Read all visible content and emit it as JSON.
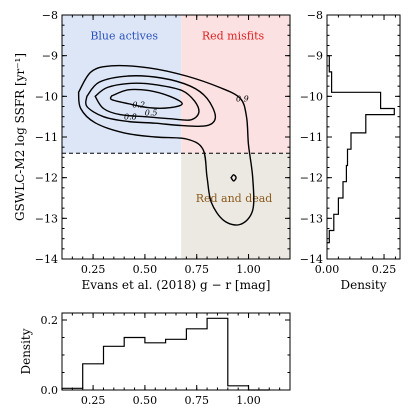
{
  "chart_data": [
    {
      "type": "contour",
      "xlabel": "Evans et al. (2018) g − r [mag]",
      "ylabel": "GSWLC-M2 log SSFR [yr⁻¹]",
      "xlim": [
        0.1,
        1.2
      ],
      "ylim": [
        -14,
        -8
      ],
      "xticks": [
        0.25,
        0.5,
        0.75,
        1.0
      ],
      "xtick_labels": [
        "0.25",
        "0.50",
        "0.75",
        "1.00"
      ],
      "yticks": [
        -14,
        -13,
        -12,
        -11,
        -10,
        -9,
        -8
      ],
      "ytick_labels": [
        "−14",
        "−13",
        "−12",
        "−11",
        "−10",
        "−9",
        "−8"
      ],
      "divider_x": 0.675,
      "divider_y": -11.4,
      "regions": [
        {
          "label": "Blue actives",
          "x_range": [
            0.1,
            0.675
          ],
          "y_range": [
            -11.4,
            -8
          ],
          "color": "#dde6f7",
          "text_color": "#2a52be",
          "label_x": 0.4,
          "label_y": -8.6
        },
        {
          "label": "Red misfits",
          "x_range": [
            0.675,
            1.2
          ],
          "y_range": [
            -11.4,
            -8
          ],
          "color": "#fbe1e1",
          "text_color": "#e02020",
          "label_x": 0.925,
          "label_y": -8.6
        },
        {
          "label": "Red and dead",
          "x_range": [
            0.675,
            1.2
          ],
          "y_range": [
            -14,
            -11.4
          ],
          "color": "#ece9e2",
          "text_color": "#8a5a1a",
          "label_x": 0.93,
          "label_y": -12.6
        }
      ],
      "contours": [
        {
          "level": "0.2",
          "label_x": 0.5,
          "label_y": -10.2,
          "points": [
            [
              0.34,
              -9.99
            ],
            [
              0.42,
              -9.84
            ],
            [
              0.52,
              -9.86
            ],
            [
              0.62,
              -10.0
            ],
            [
              0.68,
              -10.18
            ],
            [
              0.62,
              -10.28
            ],
            [
              0.52,
              -10.28
            ],
            [
              0.42,
              -10.18
            ],
            [
              0.34,
              -10.08
            ],
            [
              0.34,
              -9.99
            ]
          ]
        },
        {
          "label_x": 0.43,
          "label_y": -10.25,
          "level": "0.5",
          "label_x_alt": 0.53,
          "points": [
            [
              0.26,
              -10.0
            ],
            [
              0.32,
              -9.78
            ],
            [
              0.44,
              -9.68
            ],
            [
              0.56,
              -9.72
            ],
            [
              0.68,
              -9.86
            ],
            [
              0.74,
              -10.12
            ],
            [
              0.76,
              -10.4
            ],
            [
              0.72,
              -10.58
            ],
            [
              0.62,
              -10.55
            ],
            [
              0.5,
              -10.5
            ],
            [
              0.38,
              -10.45
            ],
            [
              0.3,
              -10.3
            ],
            [
              0.26,
              -10.0
            ]
          ]
        },
        {
          "level": "0.8",
          "label_x": 0.43,
          "label_y": -10.35,
          "points": [
            [
              0.22,
              -10.0
            ],
            [
              0.28,
              -9.65
            ],
            [
              0.42,
              -9.5
            ],
            [
              0.58,
              -9.55
            ],
            [
              0.72,
              -9.75
            ],
            [
              0.8,
              -10.05
            ],
            [
              0.84,
              -10.5
            ],
            [
              0.8,
              -10.72
            ],
            [
              0.68,
              -10.72
            ],
            [
              0.55,
              -10.66
            ],
            [
              0.42,
              -10.62
            ],
            [
              0.3,
              -10.5
            ],
            [
              0.22,
              -10.25
            ],
            [
              0.22,
              -10.0
            ]
          ]
        },
        {
          "level": "0.9",
          "label_x": 0.97,
          "label_y": -10.05,
          "points": [
            [
              0.18,
              -9.9
            ],
            [
              0.24,
              -9.4
            ],
            [
              0.34,
              -9.25
            ],
            [
              0.52,
              -9.3
            ],
            [
              0.7,
              -9.5
            ],
            [
              0.86,
              -9.78
            ],
            [
              0.96,
              -10.05
            ],
            [
              0.99,
              -10.5
            ],
            [
              1.0,
              -11.2
            ],
            [
              1.02,
              -12.0
            ],
            [
              1.02,
              -12.8
            ],
            [
              0.96,
              -13.15
            ],
            [
              0.88,
              -13.05
            ],
            [
              0.82,
              -12.6
            ],
            [
              0.8,
              -12.0
            ],
            [
              0.78,
              -11.3
            ],
            [
              0.7,
              -11.05
            ],
            [
              0.55,
              -11.0
            ],
            [
              0.4,
              -10.9
            ],
            [
              0.26,
              -10.65
            ],
            [
              0.19,
              -10.3
            ],
            [
              0.18,
              -9.9
            ]
          ]
        },
        {
          "level": "peak",
          "points": [
            [
              0.916,
              -12.0
            ],
            [
              0.928,
              -11.93
            ],
            [
              0.94,
              -12.0
            ],
            [
              0.928,
              -12.08
            ],
            [
              0.916,
              -12.0
            ]
          ]
        }
      ],
      "contour_labels": [
        {
          "text": "0.2",
          "x": 0.47,
          "y": -10.2
        },
        {
          "text": "0.5",
          "x": 0.53,
          "y": -10.4
        },
        {
          "text": "0.8",
          "x": 0.43,
          "y": -10.5
        },
        {
          "text": "0.9",
          "x": 0.97,
          "y": -10.05
        }
      ]
    },
    {
      "type": "histogram",
      "orientation": "horizontal",
      "xlabel": "Density",
      "xlim": [
        0,
        0.32
      ],
      "ylim": [
        -14,
        -8
      ],
      "xticks": [
        0.0,
        0.25
      ],
      "xtick_labels": [
        "0.00",
        "0.25"
      ],
      "yticks": [
        -14,
        -13,
        -12,
        -11,
        -10,
        -9,
        -8
      ],
      "ytick_labels": [
        "−14",
        "−13",
        "−12",
        "−11",
        "−10",
        "−9",
        "−8"
      ],
      "bin_edges": [
        -13.6,
        -13.3,
        -12.9,
        -12.5,
        -12.1,
        -11.7,
        -11.3,
        -10.9,
        -10.45,
        -10.3,
        -9.9,
        -9.4,
        -9.0
      ],
      "values": [
        0.01,
        0.03,
        0.05,
        0.07,
        0.085,
        0.09,
        0.105,
        0.17,
        0.295,
        0.235,
        0.02,
        0.01
      ]
    },
    {
      "type": "histogram",
      "orientation": "vertical",
      "ylabel": "Density",
      "xlim": [
        0.1,
        1.2
      ],
      "ylim": [
        0,
        0.22
      ],
      "xticks": [
        0.25,
        0.5,
        0.75,
        1.0
      ],
      "xtick_labels": [
        "0.25",
        "0.50",
        "0.75",
        "1.00"
      ],
      "yticks": [
        0.0,
        0.2
      ],
      "ytick_labels": [
        "0.0",
        "0.2"
      ],
      "bin_edges": [
        0.1,
        0.2,
        0.3,
        0.4,
        0.5,
        0.6,
        0.7,
        0.8,
        0.9,
        1.0,
        1.1
      ],
      "values": [
        0.005,
        0.075,
        0.125,
        0.15,
        0.135,
        0.145,
        0.175,
        0.205,
        0.012,
        0.0
      ]
    }
  ]
}
